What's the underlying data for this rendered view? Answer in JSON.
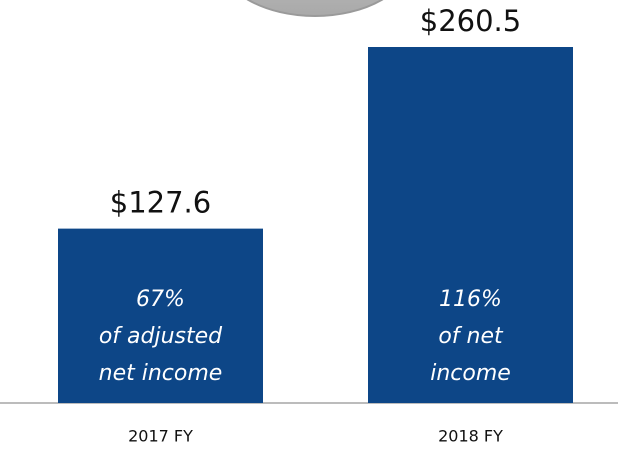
{
  "chart_data": {
    "type": "bar",
    "categories": [
      "2017 FY",
      "2018 FY"
    ],
    "values": [
      127.6,
      260.5
    ],
    "value_labels": [
      "$127.6",
      "$260.5"
    ],
    "annotations": [
      [
        "67%",
        "of adjusted",
        "net income"
      ],
      [
        "116%",
        "of net",
        "income"
      ]
    ],
    "color": "#0d4687"
  }
}
